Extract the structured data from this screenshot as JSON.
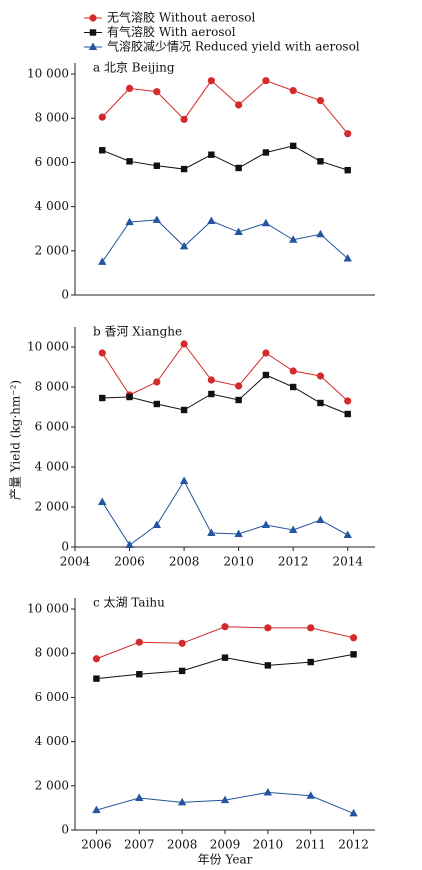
{
  "chart_data": [
    {
      "type": "line",
      "title": "a 北京 Beijing",
      "xlim": [
        2004,
        2015
      ],
      "ylim": [
        0,
        10500
      ],
      "yticks": [
        0,
        {
          "value": 2000,
          "label": "2 000"
        },
        {
          "value": 4000,
          "label": "4 000"
        },
        {
          "value": 6000,
          "label": "6 000"
        },
        {
          "value": 8000,
          "label": "8 000"
        },
        {
          "value": 10000,
          "label": "10 000"
        }
      ],
      "x": [
        2005,
        2006,
        2007,
        2008,
        2009,
        2010,
        2011,
        2012,
        2013,
        2014
      ],
      "series": [
        {
          "name": "无气溶胶 Without aerosol",
          "color": "#d42a2a",
          "marker": "circle",
          "values": [
            8050,
            9350,
            9200,
            7950,
            9700,
            8600,
            9700,
            9250,
            8800,
            7300
          ]
        },
        {
          "name": "有气溶胶 With aerosol",
          "color": "#111111",
          "marker": "square",
          "values": [
            6550,
            6050,
            5850,
            5700,
            6350,
            5750,
            6450,
            6750,
            6050,
            5650
          ]
        },
        {
          "name": "气溶胶减少情况 Reduced yield with aerosol",
          "color": "#2455a0",
          "marker": "triangle",
          "values": [
            1500,
            3300,
            3400,
            2200,
            3350,
            2850,
            3250,
            2500,
            2750,
            1650
          ]
        }
      ]
    },
    {
      "type": "line",
      "title": "b 香河 Xianghe",
      "y_label": "产量 Yield (kg·hm⁻²)",
      "xlim": [
        2004,
        2015
      ],
      "ylim": [
        0,
        11000
      ],
      "xticks": [
        2004,
        2006,
        2008,
        2010,
        2012,
        2014
      ],
      "yticks": [
        0,
        {
          "value": 2000,
          "label": "2 000"
        },
        {
          "value": 4000,
          "label": "4 000"
        },
        {
          "value": 6000,
          "label": "6 000"
        },
        {
          "value": 8000,
          "label": "8 000"
        },
        {
          "value": 10000,
          "label": "10 000"
        }
      ],
      "x": [
        2005,
        2006,
        2007,
        2008,
        2009,
        2010,
        2011,
        2012,
        2013,
        2014
      ],
      "series": [
        {
          "color": "#d42a2a",
          "marker": "circle",
          "values": [
            9700,
            7600,
            8250,
            10150,
            8350,
            8050,
            9700,
            8800,
            8550,
            7300
          ]
        },
        {
          "color": "#111111",
          "marker": "square",
          "values": [
            7450,
            7500,
            7150,
            6850,
            7650,
            7350,
            8600,
            8000,
            7200,
            6650
          ]
        },
        {
          "color": "#2455a0",
          "marker": "triangle",
          "values": [
            2250,
            100,
            1100,
            3300,
            700,
            650,
            1100,
            850,
            1350,
            600
          ]
        }
      ]
    },
    {
      "type": "line",
      "title": "c 太湖 Taihu",
      "x_label": "年份 Year",
      "xlim": [
        2005.5,
        2012.5
      ],
      "ylim": [
        0,
        10500
      ],
      "xticks": [
        2006,
        2007,
        2008,
        2009,
        2010,
        2011,
        2012
      ],
      "yticks": [
        0,
        {
          "value": 2000,
          "label": "2 000"
        },
        {
          "value": 4000,
          "label": "4 000"
        },
        {
          "value": 6000,
          "label": "6 000"
        },
        {
          "value": 8000,
          "label": "8 000"
        },
        {
          "value": 10000,
          "label": "10 000"
        }
      ],
      "x": [
        2006,
        2007,
        2008,
        2009,
        2010,
        2011,
        2012
      ],
      "series": [
        {
          "color": "#d42a2a",
          "marker": "circle",
          "values": [
            7750,
            8500,
            8450,
            9200,
            9150,
            9150,
            8700
          ]
        },
        {
          "color": "#111111",
          "marker": "square",
          "values": [
            6850,
            7050,
            7200,
            7800,
            7450,
            7600,
            7950
          ]
        },
        {
          "color": "#2455a0",
          "marker": "triangle",
          "values": [
            900,
            1450,
            1250,
            1350,
            1700,
            1550,
            750
          ]
        }
      ]
    }
  ]
}
